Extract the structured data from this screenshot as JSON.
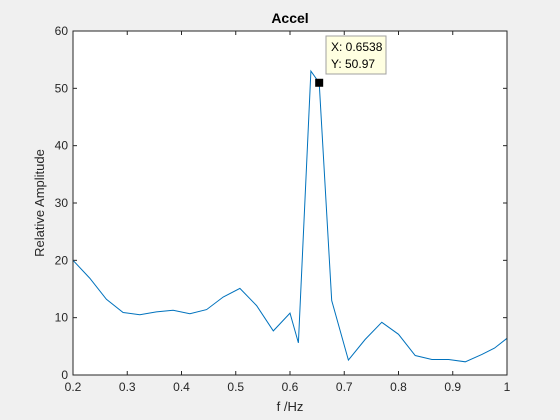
{
  "chart_data": {
    "type": "line",
    "title": "Accel",
    "xlabel": "f /Hz",
    "ylabel": "Relative Amplitude",
    "xlim": [
      0.2,
      1.0
    ],
    "ylim": [
      0,
      60
    ],
    "xticks": [
      "0.2",
      "0.3",
      "0.4",
      "0.5",
      "0.6",
      "0.7",
      "0.8",
      "0.9",
      "1"
    ],
    "yticks": [
      "0",
      "10",
      "20",
      "30",
      "40",
      "50",
      "60"
    ],
    "xtick_values": [
      0.2,
      0.3,
      0.4,
      0.5,
      0.6,
      0.7,
      0.8,
      0.9,
      1.0
    ],
    "ytick_values": [
      0,
      10,
      20,
      30,
      40,
      50,
      60
    ],
    "grid": false,
    "series_color": "#0072bd",
    "series": [
      {
        "x": [
          0.2,
          0.2308,
          0.2615,
          0.2923,
          0.3231,
          0.3538,
          0.3846,
          0.4154,
          0.4462,
          0.4769,
          0.5077,
          0.5385,
          0.5692,
          0.6,
          0.6154,
          0.6385,
          0.6538,
          0.6769,
          0.7077,
          0.7385,
          0.7692,
          0.8,
          0.8308,
          0.8615,
          0.8923,
          0.9231,
          0.9538,
          0.9769,
          1.0
        ],
        "y": [
          20.0,
          16.9,
          13.2,
          10.9,
          10.5,
          11.0,
          11.3,
          10.7,
          11.4,
          13.6,
          15.1,
          12.1,
          7.7,
          10.8,
          5.6,
          53.0,
          50.97,
          13.0,
          2.6,
          6.2,
          9.2,
          7.1,
          3.4,
          2.7,
          2.7,
          2.3,
          3.6,
          4.7,
          6.4
        ]
      }
    ],
    "datatip": {
      "x_text": "X: 0.6538",
      "y_text": "Y: 50.97",
      "x": 0.6538,
      "y": 50.97
    }
  }
}
